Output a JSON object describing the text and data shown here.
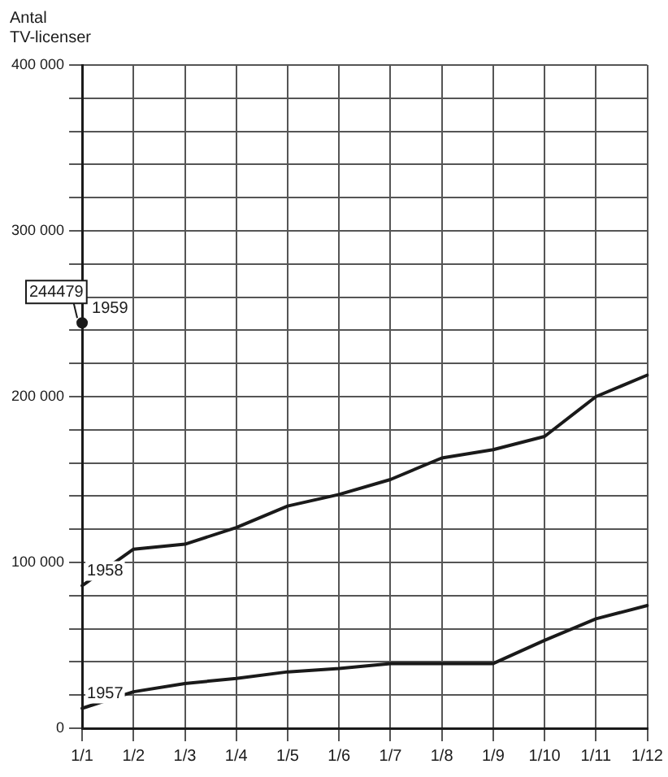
{
  "chart_data": {
    "type": "line",
    "ylabel": "Antal\nTV-licenser",
    "categories": [
      "1/1",
      "1/2",
      "1/3",
      "1/4",
      "1/5",
      "1/6",
      "1/7",
      "1/8",
      "1/9",
      "1/10",
      "1/11",
      "1/12"
    ],
    "series": [
      {
        "name": "1957",
        "color": "#1a1a1a",
        "values": [
          12000,
          22000,
          27000,
          30000,
          34000,
          36000,
          39000,
          39000,
          39000,
          53000,
          66000,
          74000
        ]
      },
      {
        "name": "1958",
        "color": "#1a1a1a",
        "values": [
          86000,
          108000,
          111000,
          121000,
          134000,
          141000,
          150000,
          163000,
          168000,
          176000,
          200000,
          213000
        ]
      },
      {
        "name": "1959",
        "color": "#1a1a1a",
        "type": "scatter",
        "values": [
          244479,
          null,
          null,
          null,
          null,
          null,
          null,
          null,
          null,
          null,
          null,
          null
        ],
        "value_labels": [
          "244479",
          null,
          null,
          null,
          null,
          null,
          null,
          null,
          null,
          null,
          null,
          null
        ]
      }
    ],
    "ylim": [
      0,
      400000
    ],
    "yticks": [
      {
        "value": 0,
        "label": "0"
      },
      {
        "value": 20000,
        "label": null
      },
      {
        "value": 40000,
        "label": null
      },
      {
        "value": 60000,
        "label": null
      },
      {
        "value": 80000,
        "label": null
      },
      {
        "value": 100000,
        "label": "100 000"
      },
      {
        "value": 120000,
        "label": null
      },
      {
        "value": 140000,
        "label": null
      },
      {
        "value": 160000,
        "label": null
      },
      {
        "value": 180000,
        "label": null
      },
      {
        "value": 200000,
        "label": "200 000"
      },
      {
        "value": 220000,
        "label": null
      },
      {
        "value": 240000,
        "label": null
      },
      {
        "value": 260000,
        "label": null
      },
      {
        "value": 280000,
        "label": null
      },
      {
        "value": 300000,
        "label": "300 000"
      },
      {
        "value": 320000,
        "label": null
      },
      {
        "value": 340000,
        "label": null
      },
      {
        "value": 360000,
        "label": null
      },
      {
        "value": 380000,
        "label": null
      },
      {
        "value": 400000,
        "label": "400 000"
      }
    ],
    "grid": true,
    "legend": false,
    "line_style": "solid"
  }
}
